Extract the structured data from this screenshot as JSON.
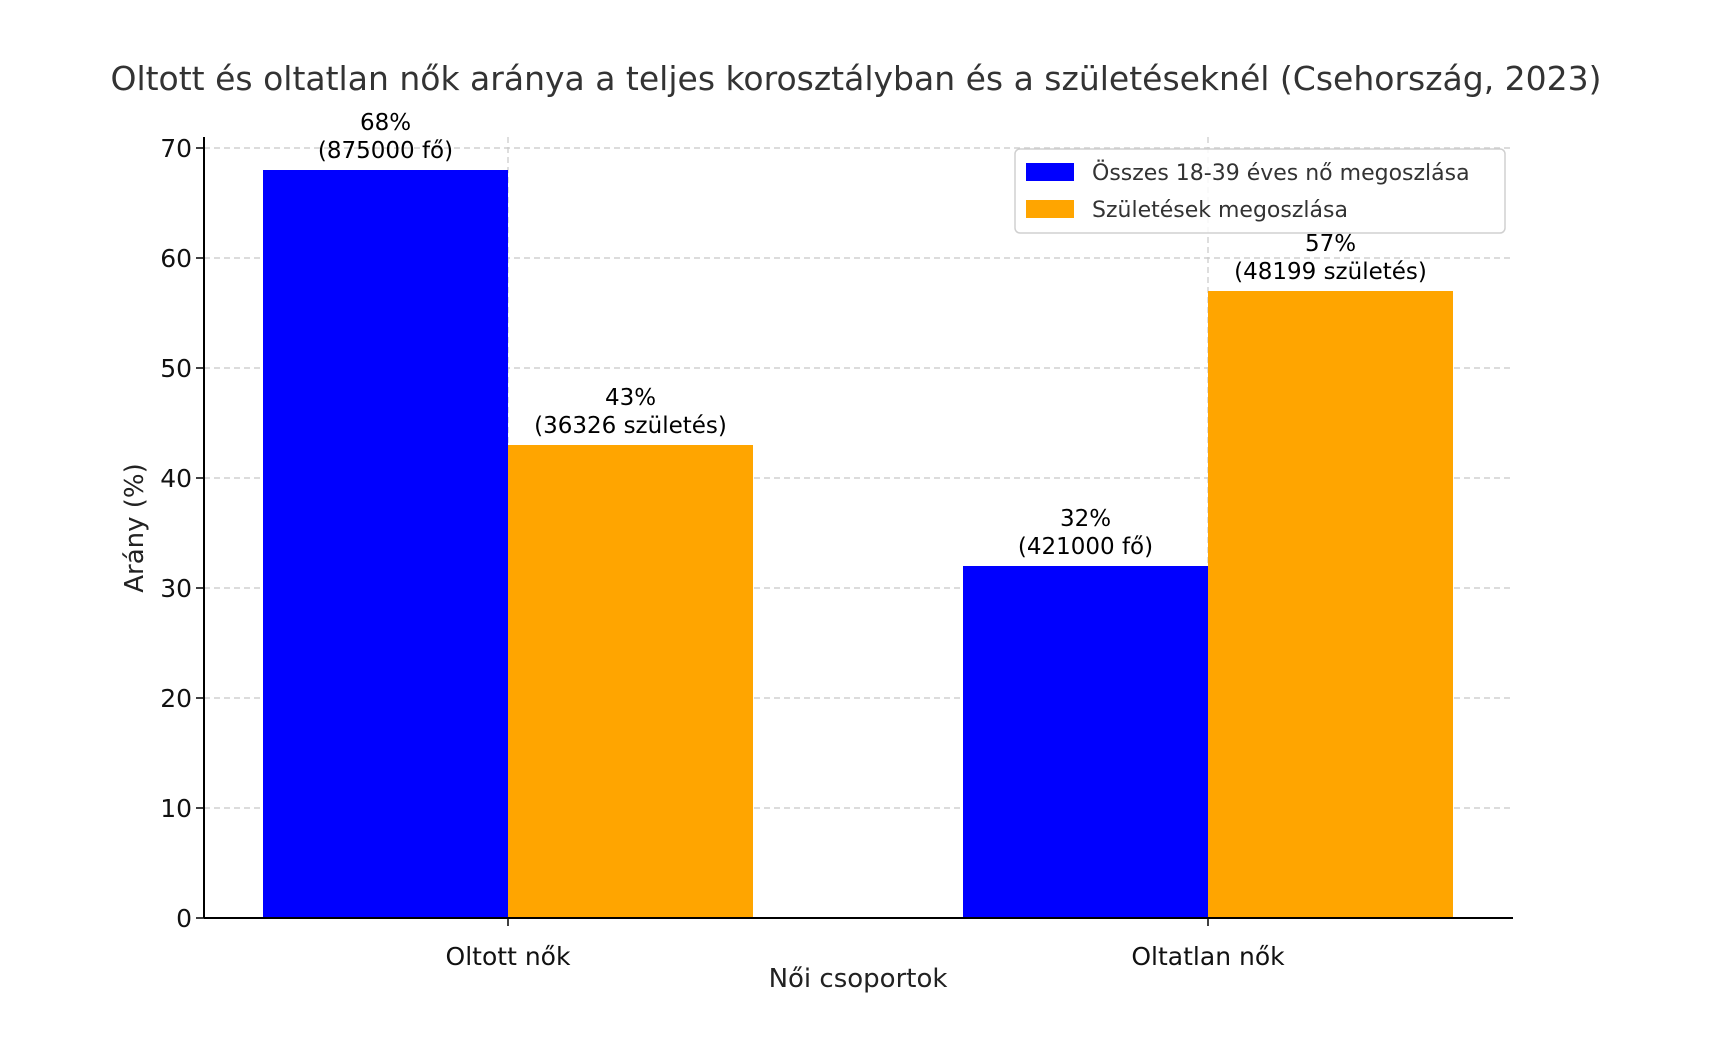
{
  "chart_data": {
    "type": "bar",
    "title": "Oltott és oltatlan nők aránya a teljes korosztályban és a születéseknél (Csehország, 2023)",
    "xlabel": "Női csoportok",
    "ylabel": "Arány (%)",
    "categories": [
      "Oltott nők",
      "Oltatlan nők"
    ],
    "ylim": [
      0,
      71
    ],
    "yticks": [
      0,
      10,
      20,
      30,
      40,
      50,
      60,
      70
    ],
    "grid": true,
    "legend_position": "top-right",
    "series": [
      {
        "name": "Összes 18-39 éves nő megoszlása",
        "color": "#0000ff",
        "values": [
          68,
          32
        ],
        "labels": [
          [
            "68%",
            "(875000 fő)"
          ],
          [
            "32%",
            "(421000 fő)"
          ]
        ]
      },
      {
        "name": "Születések megoszlása",
        "color": "#ffa500",
        "values": [
          43,
          57
        ],
        "labels": [
          [
            "43%",
            "(36326 születés)"
          ],
          [
            "57%",
            "(48199 születés)"
          ]
        ]
      }
    ]
  }
}
